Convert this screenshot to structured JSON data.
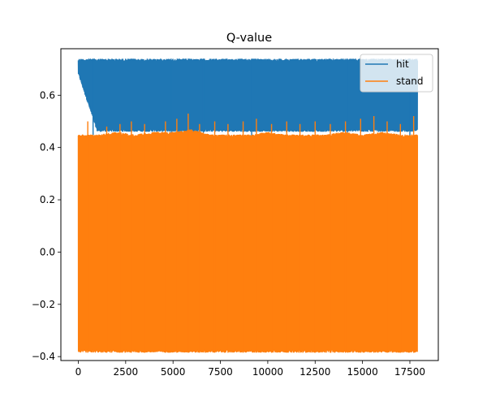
{
  "chart_data": {
    "type": "line",
    "title": "Q-value",
    "xlabel": "",
    "ylabel": "",
    "xlim": [
      -920,
      19000
    ],
    "ylim": [
      -0.415,
      0.778
    ],
    "x_ticks": [
      0,
      2500,
      5000,
      7500,
      10000,
      12500,
      15000,
      17500
    ],
    "x_tick_labels": [
      "0",
      "2500",
      "5000",
      "7500",
      "10000",
      "12500",
      "15000",
      "17500"
    ],
    "y_ticks": [
      -0.4,
      -0.2,
      0.0,
      0.2,
      0.4,
      0.6
    ],
    "y_tick_labels": [
      "−0.4",
      "−0.2",
      "0.0",
      "0.2",
      "0.4",
      "0.6"
    ],
    "x_range": [
      0,
      17900
    ],
    "legend_position": "top-right",
    "grid": false,
    "series": [
      {
        "name": "hit",
        "color": "#1f77b4",
        "typical_range": [
          0.46,
          0.74
        ],
        "band_values": [
          [
            0,
            0.68,
            0.74
          ],
          [
            1000,
            0.46,
            0.74
          ],
          [
            2000,
            0.46,
            0.74
          ],
          [
            3000,
            0.46,
            0.74
          ],
          [
            4000,
            0.46,
            0.74
          ],
          [
            5000,
            0.46,
            0.74
          ],
          [
            6000,
            0.46,
            0.74
          ],
          [
            7000,
            0.46,
            0.74
          ],
          [
            8000,
            0.46,
            0.74
          ],
          [
            9000,
            0.46,
            0.74
          ],
          [
            10000,
            0.46,
            0.74
          ],
          [
            11000,
            0.46,
            0.74
          ],
          [
            12000,
            0.46,
            0.74
          ],
          [
            13000,
            0.46,
            0.74
          ],
          [
            14000,
            0.46,
            0.74
          ],
          [
            15000,
            0.46,
            0.74
          ],
          [
            16000,
            0.46,
            0.74
          ],
          [
            17000,
            0.46,
            0.74
          ],
          [
            17900,
            0.46,
            0.74
          ]
        ],
        "dips": [
          [
            780,
            0.24
          ],
          [
            4900,
            0.25
          ],
          [
            6600,
            0.27
          ],
          [
            9150,
            0.22
          ],
          [
            14200,
            0.26
          ],
          [
            17500,
            0.35
          ]
        ]
      },
      {
        "name": "stand",
        "color": "#ff7f0e",
        "typical_range": [
          -0.385,
          0.46
        ],
        "band_values": [
          [
            0,
            -0.385,
            0.45
          ],
          [
            1000,
            -0.385,
            0.45
          ],
          [
            2000,
            -0.385,
            0.46
          ],
          [
            3000,
            -0.385,
            0.45
          ],
          [
            4000,
            -0.385,
            0.46
          ],
          [
            5000,
            -0.385,
            0.46
          ],
          [
            6000,
            -0.385,
            0.47
          ],
          [
            7000,
            -0.385,
            0.45
          ],
          [
            8000,
            -0.385,
            0.45
          ],
          [
            9000,
            -0.385,
            0.45
          ],
          [
            10000,
            -0.385,
            0.46
          ],
          [
            11000,
            -0.385,
            0.45
          ],
          [
            12000,
            -0.385,
            0.45
          ],
          [
            13000,
            -0.385,
            0.45
          ],
          [
            14000,
            -0.385,
            0.46
          ],
          [
            15000,
            -0.385,
            0.45
          ],
          [
            16000,
            -0.385,
            0.46
          ],
          [
            17000,
            -0.385,
            0.45
          ],
          [
            17900,
            -0.385,
            0.45
          ]
        ],
        "peaks": [
          [
            500,
            0.5
          ],
          [
            1500,
            0.48
          ],
          [
            2200,
            0.49
          ],
          [
            2800,
            0.5
          ],
          [
            3500,
            0.49
          ],
          [
            4600,
            0.5
          ],
          [
            5200,
            0.51
          ],
          [
            5800,
            0.53
          ],
          [
            6400,
            0.49
          ],
          [
            7200,
            0.5
          ],
          [
            7900,
            0.49
          ],
          [
            8700,
            0.5
          ],
          [
            9400,
            0.51
          ],
          [
            10200,
            0.49
          ],
          [
            11000,
            0.5
          ],
          [
            11700,
            0.49
          ],
          [
            12500,
            0.5
          ],
          [
            13300,
            0.49
          ],
          [
            14100,
            0.5
          ],
          [
            14900,
            0.51
          ],
          [
            15600,
            0.52
          ],
          [
            16300,
            0.5
          ],
          [
            17000,
            0.49
          ],
          [
            17700,
            0.52
          ]
        ]
      }
    ]
  }
}
